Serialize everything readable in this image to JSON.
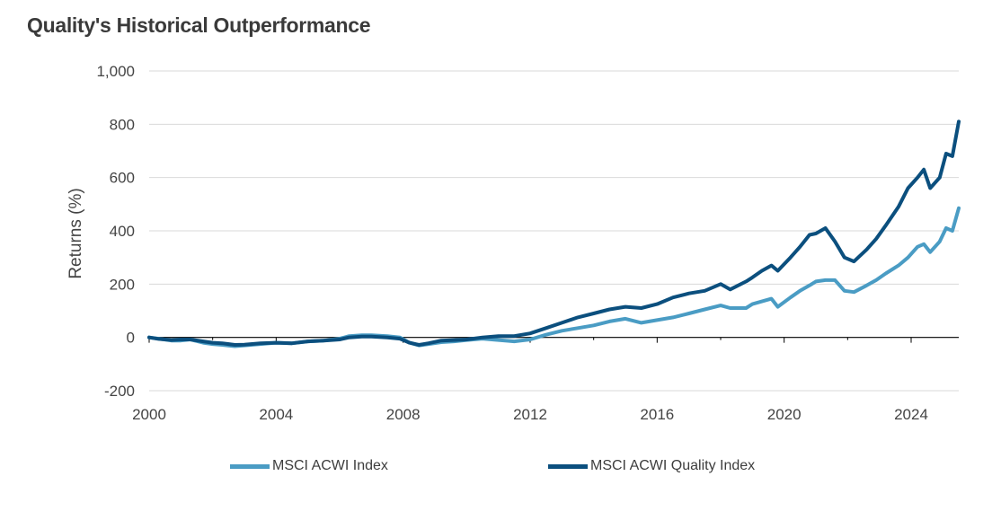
{
  "title": "Quality's Historical Outperformance",
  "chart_data": {
    "type": "line",
    "title": "Quality's Historical Outperformance",
    "xlabel": "",
    "ylabel": "Returns (%)",
    "xlim": [
      2000,
      2025.5
    ],
    "ylim": [
      -200,
      1000
    ],
    "x_ticks": [
      "2000",
      "2004",
      "2008",
      "2012",
      "2016",
      "2020",
      "2024"
    ],
    "y_ticks": [
      "1,000",
      "800",
      "600",
      "400",
      "200",
      "0",
      "-200"
    ],
    "y_tick_values": [
      1000,
      800,
      600,
      400,
      200,
      0,
      -200
    ],
    "x_tick_values": [
      2000,
      2004,
      2008,
      2012,
      2016,
      2020,
      2024
    ],
    "grid": "horizontal",
    "legend_position": "bottom",
    "series": [
      {
        "name": "MSCI ACWI Index",
        "color": "#4a9cc4",
        "points": [
          [
            2000.0,
            0
          ],
          [
            2000.3,
            -5
          ],
          [
            2000.7,
            -12
          ],
          [
            2001.0,
            -12
          ],
          [
            2001.3,
            -8
          ],
          [
            2001.7,
            -20
          ],
          [
            2002.0,
            -25
          ],
          [
            2002.3,
            -28
          ],
          [
            2002.7,
            -33
          ],
          [
            2003.0,
            -30
          ],
          [
            2003.5,
            -25
          ],
          [
            2004.0,
            -20
          ],
          [
            2004.5,
            -22
          ],
          [
            2005.0,
            -15
          ],
          [
            2005.5,
            -12
          ],
          [
            2006.0,
            -5
          ],
          [
            2006.3,
            5
          ],
          [
            2006.7,
            8
          ],
          [
            2007.0,
            8
          ],
          [
            2007.5,
            5
          ],
          [
            2007.9,
            0
          ],
          [
            2008.2,
            -20
          ],
          [
            2008.5,
            -30
          ],
          [
            2008.8,
            -25
          ],
          [
            2009.2,
            -18
          ],
          [
            2009.6,
            -15
          ],
          [
            2010.0,
            -10
          ],
          [
            2010.5,
            -5
          ],
          [
            2011.0,
            -10
          ],
          [
            2011.5,
            -15
          ],
          [
            2012.0,
            -8
          ],
          [
            2012.5,
            10
          ],
          [
            2013.0,
            25
          ],
          [
            2013.5,
            35
          ],
          [
            2014.0,
            45
          ],
          [
            2014.5,
            60
          ],
          [
            2015.0,
            70
          ],
          [
            2015.5,
            55
          ],
          [
            2016.0,
            65
          ],
          [
            2016.5,
            75
          ],
          [
            2017.0,
            90
          ],
          [
            2017.5,
            105
          ],
          [
            2018.0,
            120
          ],
          [
            2018.3,
            110
          ],
          [
            2018.8,
            110
          ],
          [
            2019.0,
            125
          ],
          [
            2019.3,
            135
          ],
          [
            2019.6,
            145
          ],
          [
            2019.8,
            115
          ],
          [
            2020.2,
            150
          ],
          [
            2020.5,
            175
          ],
          [
            2020.8,
            195
          ],
          [
            2021.0,
            210
          ],
          [
            2021.3,
            215
          ],
          [
            2021.6,
            215
          ],
          [
            2021.9,
            175
          ],
          [
            2022.2,
            170
          ],
          [
            2022.6,
            195
          ],
          [
            2022.9,
            215
          ],
          [
            2023.2,
            240
          ],
          [
            2023.6,
            270
          ],
          [
            2023.9,
            300
          ],
          [
            2024.2,
            340
          ],
          [
            2024.4,
            350
          ],
          [
            2024.6,
            320
          ],
          [
            2024.9,
            360
          ],
          [
            2025.1,
            410
          ],
          [
            2025.3,
            400
          ],
          [
            2025.5,
            485
          ]
        ]
      },
      {
        "name": "MSCI ACWI Quality Index",
        "color": "#0b4f7e",
        "points": [
          [
            2000.0,
            0
          ],
          [
            2000.3,
            -6
          ],
          [
            2000.7,
            -10
          ],
          [
            2001.0,
            -8
          ],
          [
            2001.3,
            -8
          ],
          [
            2001.7,
            -15
          ],
          [
            2002.0,
            -20
          ],
          [
            2002.3,
            -22
          ],
          [
            2002.7,
            -28
          ],
          [
            2003.0,
            -27
          ],
          [
            2003.5,
            -22
          ],
          [
            2004.0,
            -20
          ],
          [
            2004.5,
            -22
          ],
          [
            2005.0,
            -15
          ],
          [
            2005.5,
            -12
          ],
          [
            2006.0,
            -8
          ],
          [
            2006.3,
            0
          ],
          [
            2006.7,
            3
          ],
          [
            2007.0,
            3
          ],
          [
            2007.5,
            0
          ],
          [
            2007.9,
            -5
          ],
          [
            2008.2,
            -20
          ],
          [
            2008.5,
            -28
          ],
          [
            2008.8,
            -22
          ],
          [
            2009.2,
            -12
          ],
          [
            2009.6,
            -10
          ],
          [
            2010.0,
            -8
          ],
          [
            2010.5,
            0
          ],
          [
            2011.0,
            5
          ],
          [
            2011.5,
            5
          ],
          [
            2012.0,
            15
          ],
          [
            2012.5,
            35
          ],
          [
            2013.0,
            55
          ],
          [
            2013.5,
            75
          ],
          [
            2014.0,
            90
          ],
          [
            2014.5,
            105
          ],
          [
            2015.0,
            115
          ],
          [
            2015.5,
            110
          ],
          [
            2016.0,
            125
          ],
          [
            2016.5,
            150
          ],
          [
            2017.0,
            165
          ],
          [
            2017.5,
            175
          ],
          [
            2018.0,
            200
          ],
          [
            2018.3,
            180
          ],
          [
            2018.8,
            210
          ],
          [
            2019.0,
            225
          ],
          [
            2019.3,
            250
          ],
          [
            2019.6,
            270
          ],
          [
            2019.8,
            250
          ],
          [
            2020.2,
            300
          ],
          [
            2020.5,
            340
          ],
          [
            2020.8,
            385
          ],
          [
            2021.0,
            390
          ],
          [
            2021.3,
            410
          ],
          [
            2021.6,
            360
          ],
          [
            2021.9,
            300
          ],
          [
            2022.2,
            285
          ],
          [
            2022.6,
            330
          ],
          [
            2022.9,
            370
          ],
          [
            2023.2,
            420
          ],
          [
            2023.6,
            490
          ],
          [
            2023.9,
            560
          ],
          [
            2024.2,
            600
          ],
          [
            2024.4,
            630
          ],
          [
            2024.6,
            560
          ],
          [
            2024.9,
            600
          ],
          [
            2025.1,
            690
          ],
          [
            2025.3,
            680
          ],
          [
            2025.5,
            810
          ]
        ]
      }
    ]
  },
  "legend": [
    {
      "label": "MSCI ACWI Index",
      "color": "#4a9cc4"
    },
    {
      "label": "MSCI ACWI Quality Index",
      "color": "#0b4f7e"
    }
  ]
}
